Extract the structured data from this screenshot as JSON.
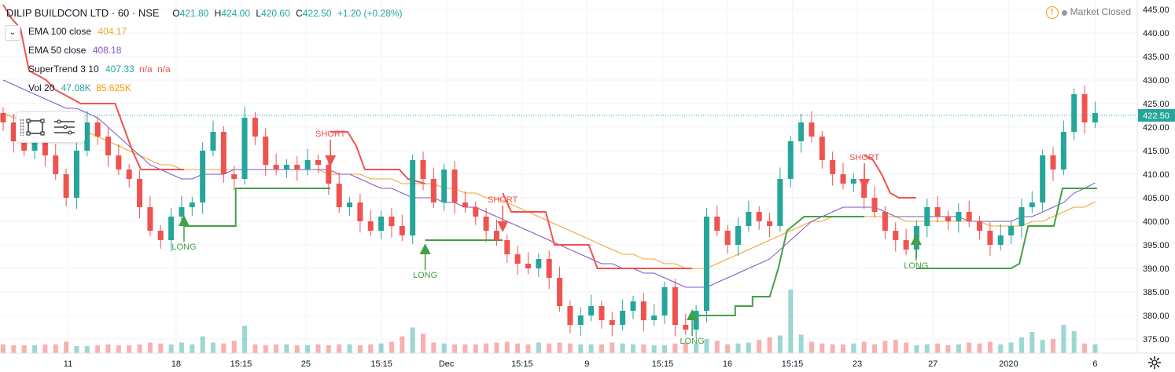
{
  "header": {
    "title": "DILIP BUILDCON LTD · 60 · NSE",
    "ohlc": [
      {
        "label": "O",
        "value": "421.80"
      },
      {
        "label": "H",
        "value": "424.00"
      },
      {
        "label": "L",
        "value": "420.60"
      },
      {
        "label": "C",
        "value": "422.50"
      }
    ],
    "change": "+1.20 (+0.28%)"
  },
  "market_status": {
    "label": "Market Closed",
    "warning_icon": "!"
  },
  "indicators": [
    {
      "name": "EMA 100 close",
      "values": [
        "404.17"
      ],
      "colors": [
        "#f0a52b"
      ]
    },
    {
      "name": "EMA 50 close",
      "values": [
        "408.18"
      ],
      "colors": [
        "#7e57c2"
      ]
    },
    {
      "name": "SuperTrend 3 10",
      "values": [
        "407.33",
        "n/a",
        "n/a"
      ],
      "colors": [
        "#26a69a",
        "#ef5350",
        "#ef5350"
      ]
    },
    {
      "name": "Vol 20",
      "values": [
        "47.08K",
        "85.625K"
      ],
      "colors": [
        "#26a69a",
        "#ff9800"
      ]
    }
  ],
  "colors": {
    "up": "#26a69a",
    "down": "#ef5350",
    "ema100": "#f0a52b",
    "ema50": "#7e57c2",
    "st_up": "#43a047",
    "st_down": "#ef5350",
    "price_tag": "#26a69a"
  },
  "chart_data": {
    "type": "candlestick",
    "ylim": [
      372,
      447
    ],
    "y_ticks": [
      "375.00",
      "380.00",
      "385.00",
      "390.00",
      "395.00",
      "400.00",
      "405.00",
      "410.00",
      "415.00",
      "420.00",
      "425.00",
      "430.00",
      "435.00",
      "440.00",
      "445.00"
    ],
    "last_price": "422.50",
    "x_ticks": [
      {
        "label": "11",
        "i": 6
      },
      {
        "label": "18",
        "i": 16
      },
      {
        "label": "15:15",
        "i": 22
      },
      {
        "label": "25",
        "i": 28
      },
      {
        "label": "15:15",
        "i": 35
      },
      {
        "label": "Dec",
        "i": 41
      },
      {
        "label": "15:15",
        "i": 48
      },
      {
        "label": "9",
        "i": 54
      },
      {
        "label": "15:15",
        "i": 61
      },
      {
        "label": "16",
        "i": 67
      },
      {
        "label": "15:15",
        "i": 73
      },
      {
        "label": "23",
        "i": 79
      },
      {
        "label": "27",
        "i": 86
      },
      {
        "label": "2020",
        "i": 93
      },
      {
        "label": "6",
        "i": 101
      }
    ],
    "closes": [
      421,
      417,
      415,
      417,
      414,
      410,
      405,
      415,
      421,
      418,
      414,
      411,
      409,
      403,
      398,
      396,
      401,
      403,
      404,
      415,
      419,
      410,
      409,
      422,
      418,
      412,
      411,
      412,
      411,
      413,
      412,
      408,
      403,
      404,
      400,
      398,
      401,
      399,
      397,
      413,
      409,
      404,
      411,
      404,
      403,
      401,
      398,
      396,
      393,
      391,
      390,
      392,
      388,
      382,
      378,
      380,
      382,
      379,
      378,
      381,
      383,
      379,
      380,
      386,
      378,
      377,
      381,
      401,
      398,
      395,
      399,
      402,
      400,
      399,
      409,
      417,
      421,
      418,
      413,
      410,
      408,
      409,
      405,
      402,
      398,
      396,
      394,
      399,
      403,
      401,
      400,
      402,
      400,
      398,
      395,
      397,
      399,
      403,
      404,
      414,
      411,
      419,
      427,
      421,
      423
    ],
    "volumes": [
      1.0,
      0.9,
      0.9,
      0.9,
      1.0,
      1.0,
      1.3,
      0.8,
      0.8,
      0.9,
      1.0,
      0.9,
      0.9,
      1.0,
      1.2,
      1.1,
      1.0,
      1.2,
      1.0,
      1.9,
      1.2,
      1.1,
      1.4,
      3.1,
      1.0,
      0.9,
      1.0,
      1.0,
      0.9,
      0.9,
      1.0,
      0.9,
      1.0,
      1.0,
      0.9,
      1.0,
      1.1,
      1.3,
      1.9,
      2.9,
      2.2,
      1.2,
      1.1,
      1.0,
      1.0,
      1.0,
      1.1,
      1.2,
      1.3,
      1.1,
      1.0,
      1.2,
      1.1,
      1.2,
      1.1,
      1.0,
      1.0,
      1.0,
      1.2,
      1.1,
      1.0,
      1.0,
      0.9,
      0.9,
      1.1,
      1.2,
      1.1,
      1.6,
      1.4,
      1.0,
      1.1,
      1.2,
      1.5,
      1.8,
      2.0,
      7.2,
      2.1,
      1.3,
      1.1,
      1.0,
      1.0,
      1.1,
      1.3,
      1.0,
      1.4,
      1.5,
      1.2,
      0.9,
      1.0,
      1.1,
      0.9,
      1.0,
      1.2,
      1.1,
      1.3,
      1.0,
      1.2,
      1.8,
      2.4,
      1.5,
      1.6,
      3.2,
      2.5,
      1.1,
      1.0
    ],
    "ema50": [
      430,
      429,
      428,
      427,
      426,
      425,
      424,
      424,
      423,
      422,
      420,
      418,
      416,
      414,
      412,
      411,
      410,
      409,
      409,
      410,
      410,
      410,
      411,
      411,
      411,
      411,
      411,
      411,
      411,
      411,
      411,
      411,
      410,
      410,
      409,
      408,
      407,
      407,
      406,
      405,
      405,
      405,
      404,
      404,
      403,
      403,
      402,
      401,
      400,
      399,
      398,
      397,
      396,
      395,
      394,
      393,
      392,
      391,
      391,
      390,
      390,
      389,
      389,
      388,
      387,
      386,
      386,
      386,
      387,
      388,
      389,
      390,
      391,
      392,
      394,
      396,
      398,
      400,
      401,
      402,
      403,
      403,
      403,
      403,
      402,
      401,
      401,
      401,
      401,
      401,
      401,
      401,
      400,
      400,
      400,
      400,
      400,
      401,
      401,
      402,
      403,
      404,
      406,
      407,
      408.18
    ],
    "ema100": [
      423,
      422,
      422,
      421,
      421,
      420,
      420,
      419,
      419,
      418,
      417,
      416,
      415,
      414,
      413,
      412,
      412,
      411,
      411,
      411,
      411,
      411,
      411,
      411,
      411,
      411,
      411,
      411,
      411,
      411,
      411,
      410,
      410,
      410,
      410,
      409,
      409,
      409,
      408,
      408,
      408,
      408,
      407,
      407,
      406,
      406,
      405,
      405,
      404,
      403,
      402,
      401,
      400,
      399,
      398,
      397,
      396,
      395,
      394,
      393,
      393,
      392,
      392,
      391,
      391,
      390,
      390,
      390,
      391,
      392,
      393,
      394,
      395,
      396,
      397,
      398,
      399,
      400,
      400,
      401,
      401,
      401,
      401,
      401,
      401,
      401,
      400,
      400,
      400,
      400,
      400,
      400,
      400,
      400,
      399,
      399,
      399,
      399,
      400,
      400,
      401,
      402,
      403,
      403,
      404.17
    ],
    "supertrend": [
      {
        "dir": "down",
        "points": [
          [
            0,
            446
          ],
          [
            1,
            443
          ],
          [
            2,
            441
          ],
          [
            3,
            432
          ],
          [
            5,
            430
          ],
          [
            6,
            428
          ],
          [
            9,
            425
          ],
          [
            13,
            425
          ],
          [
            14,
            420
          ],
          [
            15,
            415
          ],
          [
            16,
            411
          ],
          [
            21,
            411
          ]
        ]
      },
      {
        "dir": "up",
        "points": [
          [
            21,
            399
          ],
          [
            27,
            399
          ],
          [
            27,
            407
          ],
          [
            38,
            407
          ]
        ]
      },
      {
        "dir": "down",
        "points": [
          [
            38,
            419
          ],
          [
            40,
            419
          ],
          [
            41,
            416
          ],
          [
            42,
            411
          ],
          [
            46,
            411
          ],
          [
            47,
            409
          ],
          [
            49,
            408
          ],
          [
            49,
            408
          ]
        ]
      },
      {
        "dir": "up",
        "points": [
          [
            49,
            396
          ],
          [
            58,
            396
          ]
        ]
      },
      {
        "dir": "down",
        "points": [
          [
            58,
            406
          ],
          [
            59,
            402
          ],
          [
            63,
            402
          ],
          [
            64,
            395
          ],
          [
            68,
            395
          ],
          [
            69,
            390
          ],
          [
            80,
            390
          ]
        ]
      },
      {
        "dir": "up",
        "points": [
          [
            80,
            380
          ],
          [
            85,
            380
          ],
          [
            85,
            382
          ],
          [
            87,
            382
          ],
          [
            87,
            384
          ],
          [
            89,
            384
          ],
          [
            90,
            390
          ],
          [
            91,
            398
          ],
          [
            93,
            401
          ],
          [
            100,
            401
          ]
        ]
      },
      {
        "dir": "down",
        "points": [
          [
            100,
            414
          ],
          [
            101,
            413
          ],
          [
            102,
            410
          ],
          [
            103,
            406
          ],
          [
            104,
            405
          ],
          [
            106,
            405
          ]
        ]
      },
      {
        "dir": "up",
        "points": [
          [
            106,
            390
          ],
          [
            117,
            390
          ],
          [
            118,
            391
          ],
          [
            119,
            399
          ],
          [
            122,
            399
          ],
          [
            123,
            407
          ],
          [
            127,
            407
          ]
        ]
      }
    ],
    "signals": [
      {
        "text": "LONG",
        "type": "long",
        "i": 21,
        "y": 399
      },
      {
        "text": "SHORT",
        "type": "short",
        "i": 38,
        "y": 414
      },
      {
        "text": "LONG",
        "type": "long",
        "i": 49,
        "y": 393
      },
      {
        "text": "SHORT",
        "type": "short",
        "i": 58,
        "y": 400
      },
      {
        "text": "LONG",
        "type": "long",
        "i": 80,
        "y": 379
      },
      {
        "text": "SHORT",
        "type": "short",
        "i": 100,
        "y": 409
      },
      {
        "text": "LONG",
        "type": "long",
        "i": 106,
        "y": 395
      }
    ]
  }
}
